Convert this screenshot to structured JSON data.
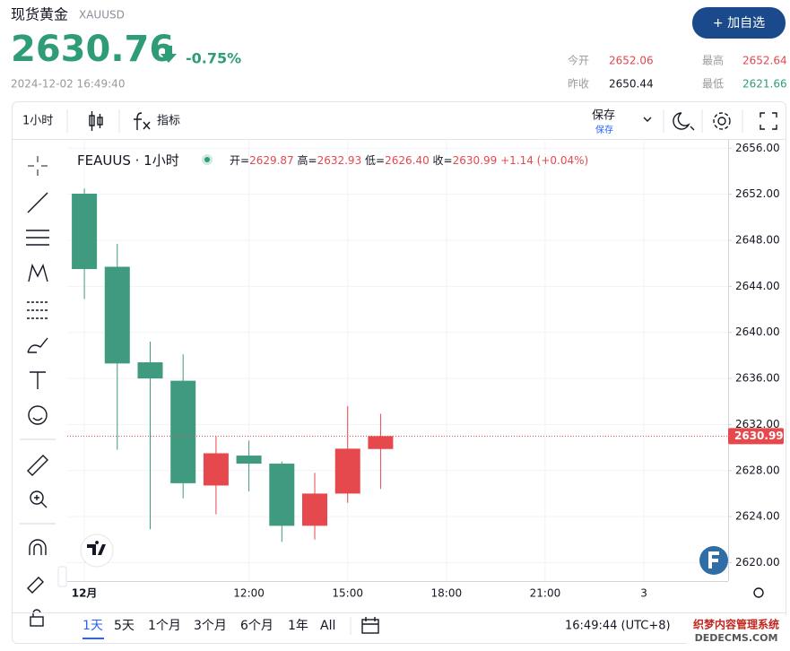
{
  "header": {
    "name": "现货黄金",
    "symbol": "XAUUSD",
    "price": 2630.76,
    "change": "-0.75%",
    "datetime": "2024-12-02 16:49:40",
    "button": "+ 加自选",
    "stats": [
      {
        "label": "今开",
        "value": 2652.06
      },
      {
        "label": "最高",
        "value": 2652.64
      },
      {
        "label": "昨收",
        "value": 2650.44
      },
      {
        "label": "最低",
        "value": 2621.66
      }
    ]
  },
  "toolbar": {
    "interval": "1小时",
    "indicators": "指标",
    "save": "保存",
    "save_status": "保存"
  },
  "chart_data": {
    "type": "candlestick",
    "title": "FEAUUS · 1小时",
    "legend": [
      {
        "label": "开=",
        "value": "2629.87"
      },
      {
        "label": "高=",
        "value": "2632.93"
      },
      {
        "label": "低=",
        "value": "2626.40"
      },
      {
        "label": "收=",
        "value": "2630.99"
      }
    ],
    "legend_change": "+1.14 (+0.04%)",
    "categories": [
      null,
      null,
      null,
      null,
      null,
      null,
      null,
      null,
      null,
      null
    ],
    "open": [
      2652.05,
      2645.7,
      2637.4,
      2635.8,
      2626.7,
      2629.3,
      2628.6,
      2623.2,
      2626.0,
      2629.87
    ],
    "high": [
      2652.5,
      2647.7,
      2639.2,
      2638.1,
      2631.0,
      2630.6,
      2628.8,
      2627.8,
      2633.6,
      2632.93
    ],
    "low": [
      2642.9,
      2629.8,
      2622.9,
      2625.6,
      2624.2,
      2626.2,
      2621.8,
      2622.0,
      2625.2,
      2626.4
    ],
    "close": [
      2645.5,
      2637.3,
      2636.0,
      2626.9,
      2629.5,
      2628.6,
      2623.2,
      2626.0,
      2629.9,
      2630.99
    ],
    "up_color": "#e5484d",
    "down_color": "#3f9a80",
    "last_price": 2630.99,
    "xlim": [
      -0.52,
      19.56
    ],
    "xticks": [
      {
        "value": 0,
        "label": "12月"
      },
      {
        "value": 5,
        "label": "12:00"
      },
      {
        "value": 8,
        "label": "15:00"
      },
      {
        "value": 11,
        "label": "18:00"
      },
      {
        "value": 14,
        "label": "21:00"
      },
      {
        "value": 17,
        "label": "3"
      }
    ],
    "ylim": [
      2618.4,
      2656.8
    ],
    "yticks": [
      {
        "value": 2620,
        "label": "2620.00"
      },
      {
        "value": 2624,
        "label": "2624.00"
      },
      {
        "value": 2628,
        "label": "2628.00"
      },
      {
        "value": 2632,
        "label": "2632.00"
      },
      {
        "value": 2636,
        "label": "2636.00"
      },
      {
        "value": 2640,
        "label": "2640.00"
      },
      {
        "value": 2644,
        "label": "2644.00"
      },
      {
        "value": 2648,
        "label": "2648.00"
      },
      {
        "value": 2652,
        "label": "2652.00"
      },
      {
        "value": 2656,
        "label": "2656.00"
      }
    ],
    "grid": true
  },
  "footer": {
    "ranges": [
      "1天",
      "5天",
      "1个月",
      "3个月",
      "6个月",
      "1年",
      "All"
    ],
    "time": "16:49:44 (UTC+8)",
    "watermark": [
      "织梦内容管理系统",
      "DEDECMS.COM"
    ]
  }
}
